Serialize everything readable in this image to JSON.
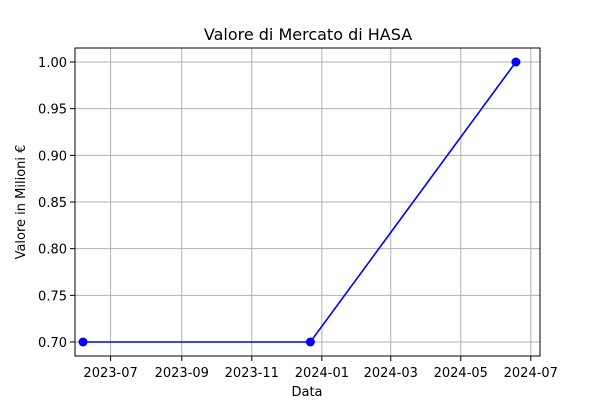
{
  "chart_data": {
    "type": "line",
    "title": "Valore di Mercato di HASA",
    "xlabel": "Data",
    "ylabel": "Valore in Milioni €",
    "x_axis_type": "date",
    "x_ticks": [
      "2023-07-01",
      "2023-09-01",
      "2023-11-01",
      "2024-01-01",
      "2024-03-01",
      "2024-05-01",
      "2024-07-01"
    ],
    "x_tick_labels": [
      "2023-07",
      "2023-09",
      "2023-11",
      "2024-01",
      "2024-03",
      "2024-05",
      "2024-07"
    ],
    "xlim": [
      "2023-05-31",
      "2024-07-09"
    ],
    "y_ticks": [
      0.7,
      0.75,
      0.8,
      0.85,
      0.9,
      0.95,
      1.0
    ],
    "y_tick_labels": [
      "0.70",
      "0.75",
      "0.80",
      "0.85",
      "0.90",
      "0.95",
      "1.00"
    ],
    "ylim": [
      0.685,
      1.015
    ],
    "grid": true,
    "series": [
      {
        "color": "#0000ff",
        "marker": "circle",
        "x": [
          "2023-06-07",
          "2023-12-22",
          "2024-06-18"
        ],
        "y": [
          0.7,
          0.7,
          1.0
        ]
      }
    ]
  }
}
